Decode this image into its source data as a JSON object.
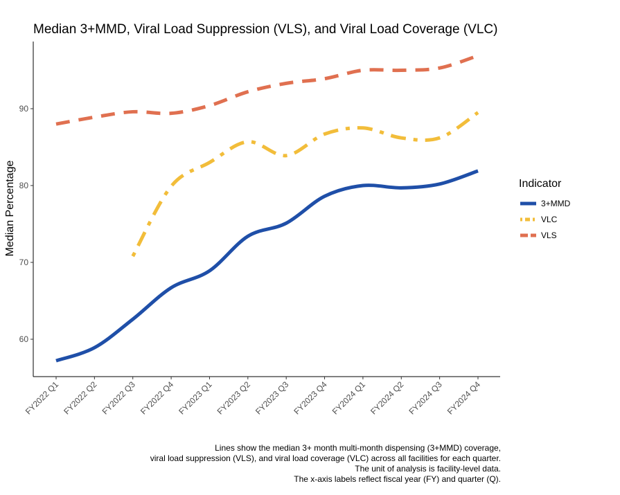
{
  "chart_data": {
    "type": "line",
    "title": "Median 3+MMD, Viral Load Suppression (VLS), and Viral Load Coverage (VLC)",
    "xlabel": "",
    "ylabel": "Median Percentage",
    "categories": [
      "FY2022 Q1",
      "FY2022 Q2",
      "FY2022 Q3",
      "FY2022 Q4",
      "FY2023 Q1",
      "FY2023 Q2",
      "FY2023 Q3",
      "FY2023 Q4",
      "FY2024 Q1",
      "FY2024 Q2",
      "FY2024 Q3",
      "FY2024 Q4"
    ],
    "ylim": [
      55,
      96
    ],
    "yticks": [
      60,
      70,
      80,
      90
    ],
    "grid": false,
    "legend": {
      "title": "Indicator",
      "position": "right"
    },
    "series": [
      {
        "name": "3+MMD",
        "color": "#1f4fa8",
        "dash": "solid",
        "values": [
          57.2,
          58.9,
          62.6,
          66.7,
          68.9,
          73.4,
          75.1,
          78.6,
          80.0,
          79.7,
          80.2,
          81.9
        ]
      },
      {
        "name": "VLC",
        "color": "#f2bd3a",
        "dash": "dotdash",
        "values": [
          null,
          null,
          70.8,
          79.9,
          83.0,
          85.7,
          83.9,
          86.7,
          87.5,
          86.2,
          86.2,
          89.5
        ]
      },
      {
        "name": "VLS",
        "color": "#e07050",
        "dash": "dashed",
        "values": [
          88.0,
          88.9,
          89.6,
          89.4,
          90.4,
          92.2,
          93.3,
          93.9,
          95.0,
          95.0,
          95.3,
          96.9
        ]
      }
    ]
  },
  "caption": {
    "lines": [
      "Lines show the median 3+ month multi-month dispensing (3+MMD) coverage,",
      "viral load suppression (VLS), and viral load coverage (VLC) across all facilities for each quarter.",
      "The unit of analysis is facility-level data.",
      "The x-axis labels reflect fiscal year (FY) and quarter (Q)."
    ]
  }
}
